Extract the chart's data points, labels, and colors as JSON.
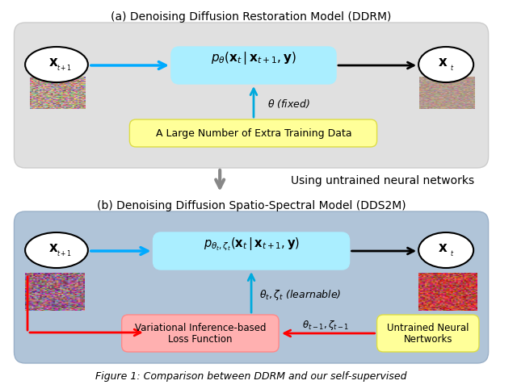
{
  "title_a": "(a) Denoising Diffusion Restoration Model (DDRM)",
  "title_b": "(b) Denoising Diffusion Spatio-Spectral Model (DDS2M)",
  "middle_text": "Using untrained neural networks",
  "fig_caption": "Figure 1: Comparison between DDRM and our self-supervised",
  "bg_color": "#f0f0f0",
  "box_a_color": "#d8d8d8",
  "box_b_color": "#b0c4d8",
  "cyan_box_color": "#aaeeff",
  "yellow_box_color": "#ffffaa",
  "pink_box_color": "#ffb8b8",
  "arrow_color_blue": "#00aaff",
  "arrow_color_black": "#000000",
  "arrow_color_gray": "#888888",
  "text_color": "#000000"
}
